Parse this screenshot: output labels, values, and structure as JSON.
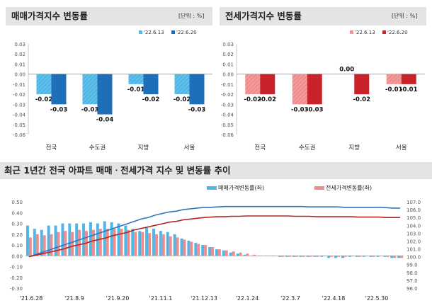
{
  "colors": {
    "sale_prev": "#4fb6e6",
    "sale_curr": "#1f6fb8",
    "jeonse_prev": "#f08c8c",
    "jeonse_curr": "#c8232a",
    "line_sale": "#2e75c0",
    "line_jeonse": "#b3261e"
  },
  "chart_data": [
    {
      "type": "bar",
      "title": "매매가격지수 변동률",
      "unit": "[단위 : %]",
      "categories": [
        "전국",
        "수도권",
        "지방",
        "서울"
      ],
      "series": [
        {
          "name": "'22.6.13",
          "values": [
            -0.02,
            -0.03,
            -0.01,
            -0.02
          ],
          "labels": [
            "-0.02",
            "-0.03",
            "-0.01",
            "-0.02"
          ]
        },
        {
          "name": "'22.6.20",
          "values": [
            -0.03,
            -0.04,
            -0.02,
            -0.03
          ],
          "labels": [
            "-0.03",
            "-0.04",
            "-0.02",
            "-0.03"
          ]
        }
      ],
      "ylim": [
        -0.06,
        0.03
      ],
      "yticks": [
        "0.03",
        "0.02",
        "0.01",
        "0.00",
        "-0.01",
        "-0.02",
        "-0.03",
        "-0.04",
        "-0.05",
        "-0.06"
      ]
    },
    {
      "type": "bar",
      "title": "전세가격지수 변동률",
      "unit": "[단위 : %]",
      "categories": [
        "전국",
        "수도권",
        "지방",
        "서울"
      ],
      "series": [
        {
          "name": "'22.6.13",
          "values": [
            -0.02,
            -0.03,
            0.0,
            -0.01
          ],
          "labels": [
            "-0.02",
            "-0.03",
            "0.00",
            "-0.01"
          ]
        },
        {
          "name": "'22.6.20",
          "values": [
            -0.02,
            -0.03,
            -0.02,
            -0.01
          ],
          "labels": [
            "-0.02",
            "-0.03",
            "-0.02",
            "-0.01"
          ]
        }
      ],
      "ylim": [
        -0.06,
        0.03
      ],
      "yticks": [
        "0.03",
        "0.02",
        "0.01",
        "0.00",
        "-0.01",
        "-0.02",
        "-0.03",
        "-0.04",
        "-0.05",
        "-0.06"
      ]
    },
    {
      "type": "bar+line",
      "title": "최근 1년간 전국 아파트 매매ㆍ전세가격 지수 및 변동률 추이",
      "legend": [
        "매매가격변동률(좌)",
        "전세가격변동률(좌)"
      ],
      "x_labels": [
        "'21.6.28",
        "'21.8.9",
        "'21.9.20",
        "'21.11.1",
        "'21.12.13",
        "'22.1.24",
        "'22.3.7",
        "'22.4.18",
        "'22.5.30"
      ],
      "left_ylim": [
        -0.3,
        0.5
      ],
      "left_yticks": [
        "0.50",
        "0.40",
        "0.30",
        "0.20",
        "0.10",
        "0.00",
        "-0.10",
        "-0.20",
        "-0.30"
      ],
      "right_ylim": [
        96.0,
        107.0
      ],
      "right_yticks": [
        "107.0",
        "106.0",
        "105.0",
        "104.0",
        "103.0",
        "102.0",
        "101.0",
        "100.0",
        "99.0",
        "98.0",
        "97.0",
        "96.0"
      ],
      "sale_change": [
        0.28,
        0.25,
        0.24,
        0.28,
        0.28,
        0.3,
        0.3,
        0.3,
        0.3,
        0.31,
        0.3,
        0.32,
        0.31,
        0.3,
        0.28,
        0.25,
        0.23,
        0.26,
        0.25,
        0.23,
        0.22,
        0.2,
        0.16,
        0.14,
        0.12,
        0.1,
        0.08,
        0.06,
        0.05,
        0.03,
        0.02,
        0.01,
        0.0,
        0.0,
        0.0,
        0.0,
        -0.01,
        -0.01,
        -0.01,
        -0.01,
        -0.01,
        -0.01,
        -0.01,
        -0.02,
        -0.02,
        -0.02,
        -0.01,
        -0.01,
        -0.01,
        -0.01,
        -0.01,
        -0.01,
        -0.02,
        -0.02
      ],
      "jeonse_change": [
        0.17,
        0.2,
        0.19,
        0.2,
        0.22,
        0.23,
        0.22,
        0.24,
        0.23,
        0.24,
        0.25,
        0.25,
        0.25,
        0.25,
        0.24,
        0.22,
        0.22,
        0.21,
        0.2,
        0.2,
        0.18,
        0.17,
        0.15,
        0.13,
        0.11,
        0.1,
        0.08,
        0.06,
        0.05,
        0.04,
        0.03,
        0.02,
        0.01,
        0.0,
        0.0,
        0.0,
        -0.01,
        -0.01,
        -0.01,
        -0.01,
        -0.01,
        -0.01,
        0.0,
        -0.01,
        -0.01,
        -0.01,
        0.0,
        -0.01,
        0.0,
        -0.01,
        0.0,
        -0.01,
        -0.02,
        -0.02
      ],
      "sale_index": [
        100.0,
        100.3,
        100.6,
        100.9,
        101.2,
        101.5,
        101.8,
        102.1,
        102.4,
        102.7,
        103.0,
        103.3,
        103.6,
        103.9,
        104.2,
        104.5,
        104.8,
        105.0,
        105.3,
        105.5,
        105.7,
        105.8,
        106.0,
        106.1,
        106.2,
        106.3,
        106.3,
        106.35,
        106.4,
        106.4,
        106.4,
        106.4,
        106.4,
        106.4,
        106.4,
        106.4,
        106.4,
        106.4,
        106.4,
        106.4,
        106.35,
        106.35,
        106.35,
        106.35,
        106.35,
        106.3,
        106.3,
        106.3,
        106.3,
        106.3,
        106.3,
        106.25,
        106.2,
        106.2
      ],
      "jeonse_index": [
        100.0,
        100.2,
        100.4,
        100.6,
        100.8,
        101.0,
        101.3,
        101.5,
        101.7,
        102.0,
        102.2,
        102.4,
        102.7,
        102.9,
        103.1,
        103.4,
        103.6,
        103.8,
        104.0,
        104.2,
        104.4,
        104.5,
        104.7,
        104.8,
        104.9,
        105.0,
        105.05,
        105.1,
        105.1,
        105.15,
        105.15,
        105.2,
        105.2,
        105.2,
        105.2,
        105.2,
        105.2,
        105.2,
        105.15,
        105.15,
        105.15,
        105.1,
        105.1,
        105.1,
        105.1,
        105.1,
        105.1,
        105.05,
        105.05,
        105.05,
        105.05,
        105.0,
        105.0,
        105.0
      ]
    }
  ]
}
